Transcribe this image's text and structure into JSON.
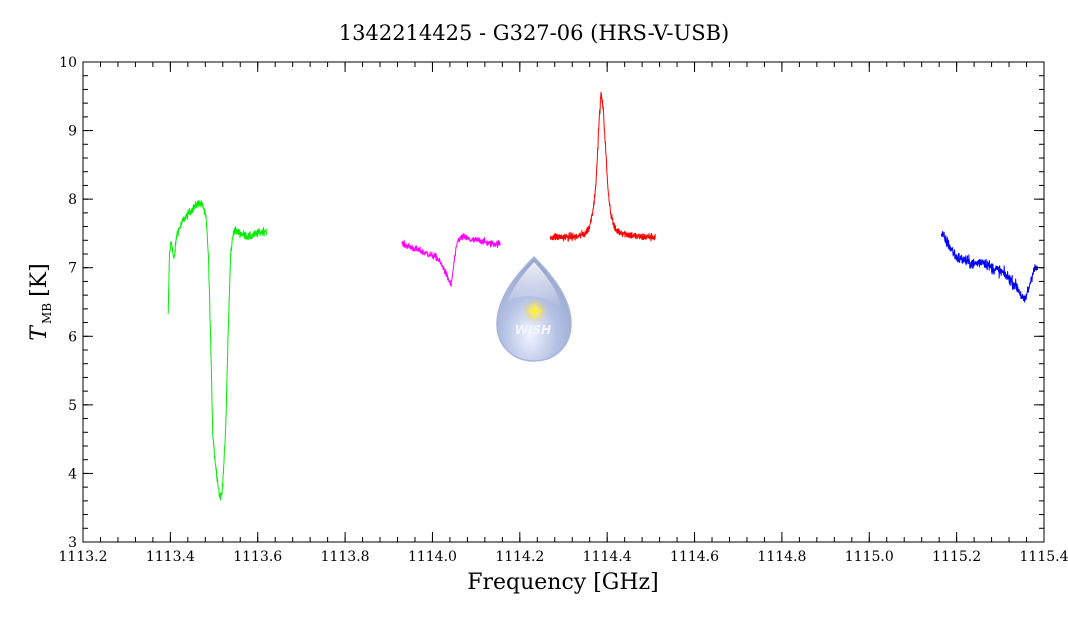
{
  "chart_data": {
    "type": "line",
    "title": "1342214425 - G327-06 (HRS-V-USB)",
    "xlabel": "Frequency [GHz]",
    "ylabel": {
      "main": "T",
      "sub": "MB",
      "unit": "[K]"
    },
    "xlim": [
      1113.2,
      1115.4
    ],
    "ylim": [
      3,
      10
    ],
    "x_ticks": [
      1113.2,
      1113.4,
      1113.6,
      1113.8,
      1114.0,
      1114.2,
      1114.4,
      1114.6,
      1114.8,
      1115.0,
      1115.2,
      1115.4
    ],
    "x_tick_labels": [
      "1113.2",
      "1113.4",
      "1113.6",
      "1113.8",
      "1114.0",
      "1114.2",
      "1114.4",
      "1114.6",
      "1114.8",
      "1115.0",
      "1115.2",
      "1115.4"
    ],
    "y_ticks": [
      3,
      4,
      5,
      6,
      7,
      8,
      9,
      10
    ],
    "y_tick_labels": [
      "3",
      "4",
      "5",
      "6",
      "7",
      "8",
      "9",
      "10"
    ],
    "grid": false,
    "logo": {
      "text": "WISH"
    },
    "series": [
      {
        "color": "#00ee00",
        "noise": 0.07,
        "points": [
          [
            1113.395,
            6.3
          ],
          [
            1113.398,
            7.2
          ],
          [
            1113.402,
            7.4
          ],
          [
            1113.408,
            7.1
          ],
          [
            1113.415,
            7.5
          ],
          [
            1113.43,
            7.7
          ],
          [
            1113.45,
            7.85
          ],
          [
            1113.465,
            7.95
          ],
          [
            1113.475,
            7.9
          ],
          [
            1113.482,
            7.7
          ],
          [
            1113.487,
            7.2
          ],
          [
            1113.492,
            6.0
          ],
          [
            1113.497,
            4.6
          ],
          [
            1113.502,
            4.2
          ],
          [
            1113.508,
            3.9
          ],
          [
            1113.513,
            3.65
          ],
          [
            1113.518,
            3.7
          ],
          [
            1113.523,
            4.2
          ],
          [
            1113.527,
            4.7
          ],
          [
            1113.532,
            6.0
          ],
          [
            1113.538,
            7.2
          ],
          [
            1113.545,
            7.55
          ],
          [
            1113.56,
            7.5
          ],
          [
            1113.58,
            7.45
          ],
          [
            1113.6,
            7.5
          ],
          [
            1113.62,
            7.55
          ]
        ]
      },
      {
        "color": "#ff00ff",
        "noise": 0.06,
        "points": [
          [
            1113.93,
            7.35
          ],
          [
            1113.95,
            7.3
          ],
          [
            1113.97,
            7.25
          ],
          [
            1113.99,
            7.2
          ],
          [
            1114.01,
            7.15
          ],
          [
            1114.025,
            7.0
          ],
          [
            1114.035,
            6.85
          ],
          [
            1114.043,
            6.75
          ],
          [
            1114.05,
            7.1
          ],
          [
            1114.058,
            7.4
          ],
          [
            1114.07,
            7.45
          ],
          [
            1114.09,
            7.4
          ],
          [
            1114.11,
            7.4
          ],
          [
            1114.13,
            7.35
          ],
          [
            1114.155,
            7.35
          ]
        ]
      },
      {
        "color": "#ff0000",
        "noise": 0.07,
        "points": [
          [
            1114.27,
            7.45
          ],
          [
            1114.3,
            7.45
          ],
          [
            1114.33,
            7.45
          ],
          [
            1114.35,
            7.5
          ],
          [
            1114.36,
            7.6
          ],
          [
            1114.37,
            7.95
          ],
          [
            1114.376,
            8.4
          ],
          [
            1114.381,
            9.1
          ],
          [
            1114.386,
            9.55
          ],
          [
            1114.391,
            9.3
          ],
          [
            1114.396,
            8.8
          ],
          [
            1114.401,
            8.2
          ],
          [
            1114.408,
            7.8
          ],
          [
            1114.418,
            7.55
          ],
          [
            1114.44,
            7.5
          ],
          [
            1114.47,
            7.45
          ],
          [
            1114.51,
            7.45
          ]
        ]
      },
      {
        "color": "#0000ff",
        "noise": 0.1,
        "points": [
          [
            1115.165,
            7.5
          ],
          [
            1115.18,
            7.35
          ],
          [
            1115.2,
            7.15
          ],
          [
            1115.22,
            7.1
          ],
          [
            1115.24,
            7.05
          ],
          [
            1115.26,
            7.1
          ],
          [
            1115.28,
            7.0
          ],
          [
            1115.3,
            6.95
          ],
          [
            1115.32,
            6.85
          ],
          [
            1115.34,
            6.7
          ],
          [
            1115.355,
            6.5
          ],
          [
            1115.365,
            6.7
          ],
          [
            1115.375,
            6.95
          ],
          [
            1115.385,
            7.0
          ]
        ]
      }
    ]
  }
}
